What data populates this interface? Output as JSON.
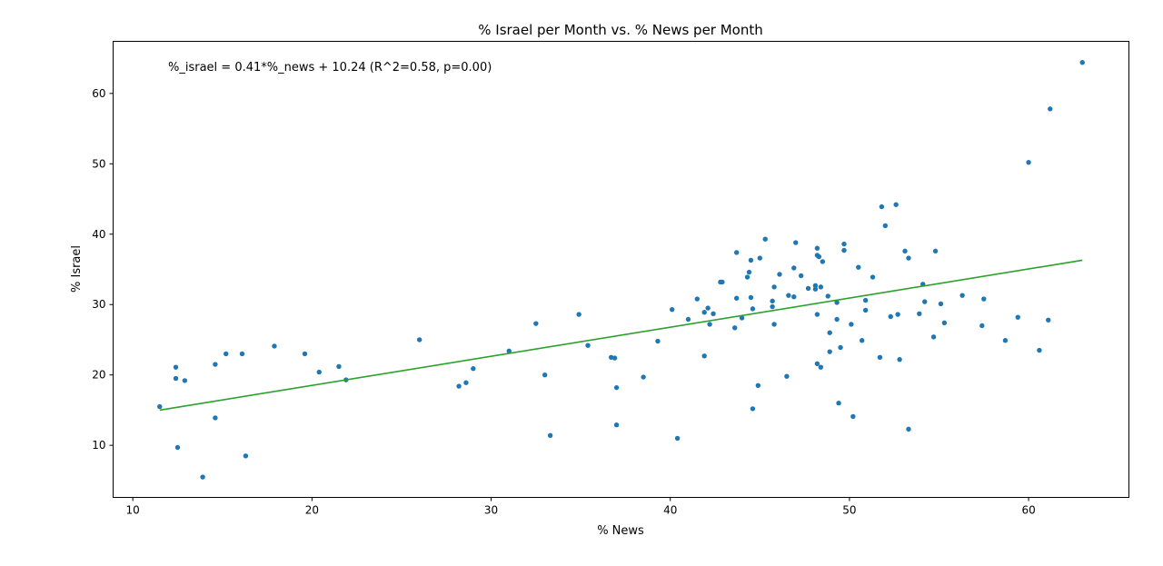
{
  "chart_data": {
    "type": "scatter",
    "title": "% Israel per Month vs. % News per Month",
    "xlabel": "% News",
    "ylabel": "% Israel",
    "annotation": "%_israel = 0.41*%_news + 10.24  (R^2=0.58, p=0.00)",
    "xlim": [
      8.9,
      65.6
    ],
    "ylim": [
      2.6,
      67.4
    ],
    "xticks": [
      10,
      20,
      30,
      40,
      50,
      60
    ],
    "yticks": [
      10,
      20,
      30,
      40,
      50,
      60
    ],
    "grid": false,
    "point_color": "#1f77b4",
    "fit_line": {
      "slope": 0.41,
      "intercept": 10.24,
      "color": "#2ca02c",
      "x": [
        11.5,
        63.0
      ],
      "y": [
        15.0,
        36.3
      ]
    },
    "points": [
      [
        11.5,
        15.5
      ],
      [
        12.4,
        19.5
      ],
      [
        12.4,
        21.1
      ],
      [
        12.5,
        9.7
      ],
      [
        12.9,
        19.2
      ],
      [
        13.9,
        5.5
      ],
      [
        14.6,
        13.9
      ],
      [
        14.6,
        21.5
      ],
      [
        15.2,
        23.0
      ],
      [
        16.1,
        23.0
      ],
      [
        16.3,
        8.5
      ],
      [
        17.9,
        24.1
      ],
      [
        19.6,
        23.0
      ],
      [
        20.4,
        20.4
      ],
      [
        21.5,
        21.2
      ],
      [
        21.9,
        19.3
      ],
      [
        26.0,
        25.0
      ],
      [
        28.2,
        18.4
      ],
      [
        28.6,
        18.9
      ],
      [
        29.0,
        20.9
      ],
      [
        31.0,
        23.4
      ],
      [
        32.5,
        27.3
      ],
      [
        33.0,
        20.0
      ],
      [
        33.3,
        11.4
      ],
      [
        34.9,
        28.6
      ],
      [
        35.4,
        24.2
      ],
      [
        36.7,
        22.5
      ],
      [
        36.9,
        22.4
      ],
      [
        37.0,
        18.2
      ],
      [
        37.0,
        12.9
      ],
      [
        38.5,
        19.7
      ],
      [
        39.3,
        24.8
      ],
      [
        40.1,
        29.3
      ],
      [
        40.4,
        11.0
      ],
      [
        41.0,
        27.9
      ],
      [
        41.5,
        30.8
      ],
      [
        41.9,
        28.9
      ],
      [
        41.9,
        22.7
      ],
      [
        42.1,
        29.5
      ],
      [
        42.2,
        27.2
      ],
      [
        42.4,
        28.7
      ],
      [
        42.8,
        33.2
      ],
      [
        42.9,
        33.2
      ],
      [
        43.6,
        26.7
      ],
      [
        43.7,
        37.4
      ],
      [
        43.7,
        30.9
      ],
      [
        44.0,
        28.1
      ],
      [
        44.3,
        33.9
      ],
      [
        44.4,
        34.6
      ],
      [
        44.5,
        36.3
      ],
      [
        44.5,
        31.0
      ],
      [
        44.6,
        29.4
      ],
      [
        44.6,
        15.2
      ],
      [
        44.9,
        18.5
      ],
      [
        45.0,
        36.6
      ],
      [
        45.3,
        39.3
      ],
      [
        45.7,
        30.5
      ],
      [
        45.7,
        29.7
      ],
      [
        45.8,
        32.5
      ],
      [
        45.8,
        27.2
      ],
      [
        46.1,
        34.3
      ],
      [
        46.5,
        19.8
      ],
      [
        46.6,
        31.3
      ],
      [
        46.9,
        35.2
      ],
      [
        46.9,
        31.1
      ],
      [
        47.0,
        38.8
      ],
      [
        47.3,
        34.1
      ],
      [
        47.7,
        32.3
      ],
      [
        48.1,
        32.7
      ],
      [
        48.1,
        32.2
      ],
      [
        48.2,
        38.0
      ],
      [
        48.2,
        37.0
      ],
      [
        48.2,
        28.6
      ],
      [
        48.2,
        21.6
      ],
      [
        48.3,
        36.8
      ],
      [
        48.4,
        32.5
      ],
      [
        48.4,
        21.1
      ],
      [
        48.5,
        36.1
      ],
      [
        48.8,
        31.2
      ],
      [
        48.9,
        26.0
      ],
      [
        48.9,
        23.3
      ],
      [
        49.3,
        30.3
      ],
      [
        49.3,
        27.9
      ],
      [
        49.4,
        16.0
      ],
      [
        49.5,
        23.9
      ],
      [
        49.7,
        38.6
      ],
      [
        49.7,
        37.7
      ],
      [
        50.1,
        27.2
      ],
      [
        50.2,
        14.1
      ],
      [
        50.5,
        35.3
      ],
      [
        50.7,
        24.9
      ],
      [
        50.9,
        30.6
      ],
      [
        50.9,
        29.2
      ],
      [
        51.3,
        33.9
      ],
      [
        51.7,
        22.5
      ],
      [
        51.8,
        43.9
      ],
      [
        52.0,
        41.2
      ],
      [
        52.3,
        28.3
      ],
      [
        52.6,
        44.2
      ],
      [
        52.7,
        28.6
      ],
      [
        52.8,
        22.2
      ],
      [
        53.1,
        37.6
      ],
      [
        53.3,
        36.6
      ],
      [
        53.3,
        12.3
      ],
      [
        53.9,
        28.7
      ],
      [
        54.1,
        32.9
      ],
      [
        54.2,
        30.4
      ],
      [
        54.7,
        25.4
      ],
      [
        54.8,
        37.6
      ],
      [
        55.1,
        30.1
      ],
      [
        55.3,
        27.4
      ],
      [
        56.3,
        31.3
      ],
      [
        57.4,
        27.0
      ],
      [
        57.5,
        30.8
      ],
      [
        58.7,
        24.9
      ],
      [
        59.4,
        28.2
      ],
      [
        60.0,
        50.2
      ],
      [
        60.6,
        23.5
      ],
      [
        61.1,
        27.8
      ],
      [
        61.2,
        57.8
      ],
      [
        63.0,
        64.4
      ]
    ]
  }
}
